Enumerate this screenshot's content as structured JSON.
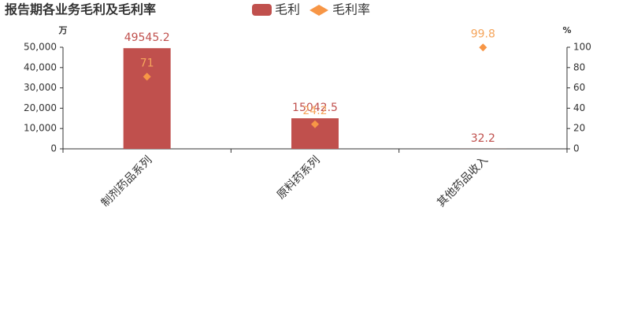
{
  "chart_data": {
    "type": "bar",
    "title": "报告期各业务毛利及毛利率",
    "y_unit": "万",
    "y2_unit": "%",
    "categories": [
      "制剂药品系列",
      "原料药系列",
      "其他药品收入"
    ],
    "series": [
      {
        "name": "毛利",
        "type": "bar",
        "color": "#c0504d",
        "label_color": "#c0504d",
        "values": [
          49545.2,
          15042.5,
          32.2
        ]
      },
      {
        "name": "毛利率",
        "type": "scatter",
        "axis": "y2",
        "color": "#f79646",
        "label_color": "#f5a55c",
        "values": [
          71,
          24.2,
          99.8
        ]
      }
    ],
    "ylim": [
      0,
      50000
    ],
    "yticks": [
      0,
      {
        "value": 10000,
        "label": "10,000"
      },
      {
        "value": 20000,
        "label": "20,000"
      },
      {
        "value": 30000,
        "label": "30,000"
      },
      {
        "value": 40000,
        "label": "40,000"
      },
      {
        "value": 50000,
        "label": "50,000"
      }
    ],
    "y2lim": [
      0,
      100
    ],
    "y2ticks": [
      0,
      20,
      40,
      60,
      80,
      100
    ]
  }
}
